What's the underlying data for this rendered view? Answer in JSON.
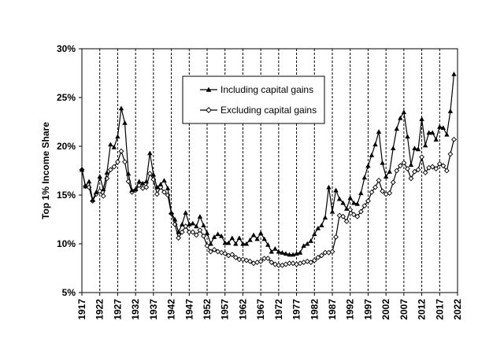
{
  "chart_data": {
    "type": "line",
    "title": "",
    "xlabel": "",
    "ylabel": "Top 1% Income Share",
    "xlim": [
      1917,
      2022
    ],
    "ylim": [
      5,
      30
    ],
    "y_ticks": [
      "5%",
      "10%",
      "15%",
      "20%",
      "25%",
      "30%"
    ],
    "y_tick_values": [
      5,
      10,
      15,
      20,
      25,
      30
    ],
    "x_ticks": [
      "1917",
      "1922",
      "1927",
      "1932",
      "1937",
      "1942",
      "1947",
      "1952",
      "1957",
      "1962",
      "1967",
      "1972",
      "1977",
      "1982",
      "1987",
      "1992",
      "1997",
      "2002",
      "2007",
      "2012",
      "2017",
      "2022"
    ],
    "x_tick_values": [
      1917,
      1922,
      1927,
      1932,
      1937,
      1942,
      1947,
      1952,
      1957,
      1962,
      1967,
      1972,
      1977,
      1982,
      1987,
      1992,
      1997,
      2002,
      2007,
      2012,
      2017,
      2022
    ],
    "grid": "vertical dashed lines at each x tick",
    "legend_position": "upper-center",
    "x": [
      1917,
      1918,
      1919,
      1920,
      1921,
      1922,
      1923,
      1924,
      1925,
      1926,
      1927,
      1928,
      1929,
      1930,
      1931,
      1932,
      1933,
      1934,
      1935,
      1936,
      1937,
      1938,
      1939,
      1940,
      1941,
      1942,
      1943,
      1944,
      1945,
      1946,
      1947,
      1948,
      1949,
      1950,
      1951,
      1952,
      1953,
      1954,
      1955,
      1956,
      1957,
      1958,
      1959,
      1960,
      1961,
      1962,
      1963,
      1964,
      1965,
      1966,
      1967,
      1968,
      1969,
      1970,
      1971,
      1972,
      1973,
      1974,
      1975,
      1976,
      1977,
      1978,
      1979,
      1980,
      1981,
      1982,
      1983,
      1984,
      1985,
      1986,
      1987,
      1988,
      1989,
      1990,
      1991,
      1992,
      1993,
      1994,
      1995,
      1996,
      1997,
      1998,
      1999,
      2000,
      2001,
      2002,
      2003,
      2004,
      2005,
      2006,
      2007,
      2008,
      2009,
      2010,
      2011,
      2012,
      2013,
      2014,
      2015,
      2016,
      2017,
      2018,
      2019,
      2020,
      2021
    ],
    "series": [
      {
        "name": "Including capital gains",
        "marker": "filled-triangle",
        "values": [
          17.6,
          15.9,
          16.4,
          14.5,
          15.3,
          16.9,
          15.6,
          17.3,
          20.2,
          19.9,
          21.0,
          23.9,
          22.4,
          17.2,
          15.5,
          15.6,
          16.4,
          16.2,
          16.4,
          19.3,
          17.1,
          15.8,
          16.1,
          16.5,
          15.7,
          13.2,
          12.5,
          11.2,
          12.0,
          13.2,
          12.0,
          12.1,
          11.8,
          12.8,
          11.9,
          11.1,
          10.0,
          10.7,
          11.0,
          10.8,
          10.1,
          10.1,
          10.6,
          10.0,
          10.6,
          10.0,
          10.0,
          10.4,
          10.9,
          10.5,
          11.1,
          10.5,
          9.9,
          9.2,
          9.5,
          9.2,
          9.1,
          9.0,
          8.9,
          8.9,
          9.0,
          9.1,
          9.8,
          10.0,
          10.3,
          11.0,
          11.6,
          11.9,
          12.7,
          15.8,
          13.3,
          15.5,
          14.6,
          14.2,
          13.6,
          14.7,
          14.2,
          14.1,
          15.2,
          16.8,
          18.0,
          19.1,
          20.2,
          21.5,
          18.3,
          16.9,
          17.4,
          19.8,
          21.8,
          22.9,
          23.5,
          21.0,
          18.1,
          19.8,
          19.7,
          22.8,
          20.1,
          21.4,
          21.4,
          20.7,
          22.0,
          21.9,
          21.2,
          23.6,
          27.4
        ]
      },
      {
        "name": "Excluding capital gains",
        "marker": "open-diamond",
        "values": [
          17.6,
          15.9,
          15.8,
          14.4,
          15.1,
          15.4,
          14.9,
          16.7,
          17.6,
          17.9,
          18.4,
          19.5,
          18.4,
          16.4,
          15.3,
          15.5,
          16.0,
          15.7,
          15.8,
          17.2,
          16.6,
          15.1,
          15.8,
          15.3,
          15.0,
          13.1,
          12.0,
          10.6,
          11.2,
          11.8,
          11.2,
          11.2,
          10.9,
          11.4,
          10.8,
          9.8,
          9.2,
          9.4,
          9.2,
          9.1,
          9.0,
          8.8,
          8.9,
          8.6,
          8.4,
          8.4,
          8.3,
          8.2,
          8.0,
          8.1,
          8.2,
          8.5,
          8.5,
          8.1,
          7.9,
          7.8,
          7.8,
          7.9,
          8.0,
          8.0,
          7.9,
          8.0,
          8.1,
          8.2,
          8.1,
          8.3,
          8.6,
          8.8,
          9.1,
          9.1,
          9.2,
          10.7,
          12.9,
          12.8,
          12.3,
          13.5,
          13.0,
          12.8,
          13.3,
          13.9,
          14.4,
          15.3,
          15.8,
          16.5,
          15.4,
          15.1,
          15.2,
          16.3,
          17.5,
          18.0,
          18.3,
          17.7,
          16.7,
          17.4,
          17.6,
          18.9,
          17.3,
          17.8,
          17.9,
          17.7,
          18.2,
          18.0,
          17.5,
          19.2,
          20.7
        ]
      }
    ]
  },
  "legend": {
    "items": [
      {
        "label": "Including capital gains"
      },
      {
        "label": "Excluding capital gains"
      }
    ]
  }
}
